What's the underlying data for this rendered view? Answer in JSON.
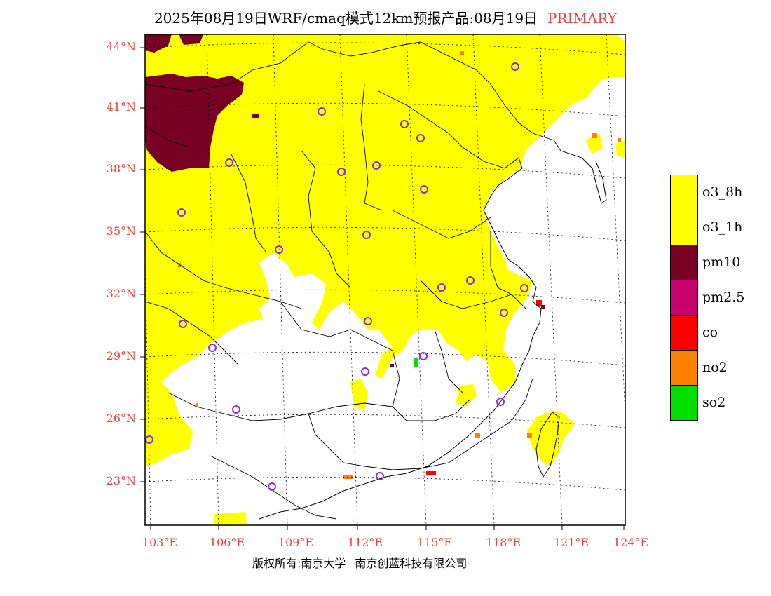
{
  "header": {
    "title": "2025年08月19日WRF/cmaq模式12km预报产品:08月19日",
    "badge": "PRIMARY"
  },
  "axes": {
    "lat_labels": [
      "44°N",
      "41°N",
      "38°N",
      "35°N",
      "32°N",
      "29°N",
      "26°N",
      "23°N"
    ],
    "lon_labels": [
      "103°E",
      "106°E",
      "109°E",
      "112°E",
      "115°E",
      "118°E",
      "121°E",
      "124°E"
    ],
    "lat_values": [
      44,
      41,
      38,
      35,
      32,
      29,
      26,
      23
    ],
    "lon_values": [
      103,
      106,
      109,
      112,
      115,
      118,
      121,
      124
    ]
  },
  "legend": {
    "items": [
      {
        "label": "o3_8h",
        "color": "#ffff00"
      },
      {
        "label": "o3_1h",
        "color": "#ffff00"
      },
      {
        "label": "pm10",
        "color": "#780025"
      },
      {
        "label": "pm2.5",
        "color": "#c8006e"
      },
      {
        "label": "co",
        "color": "#ff0000"
      },
      {
        "label": "no2",
        "color": "#ff7f00"
      },
      {
        "label": "so2",
        "color": "#00e000"
      }
    ]
  },
  "footer": {
    "left": "版权所有:南京大学",
    "right": "南京创蓝科技有限公司"
  },
  "colors": {
    "axis_label": "#e8403c",
    "station_marker": "#8a2be2",
    "o3": "#ffff00",
    "pm10": "#780025"
  }
}
